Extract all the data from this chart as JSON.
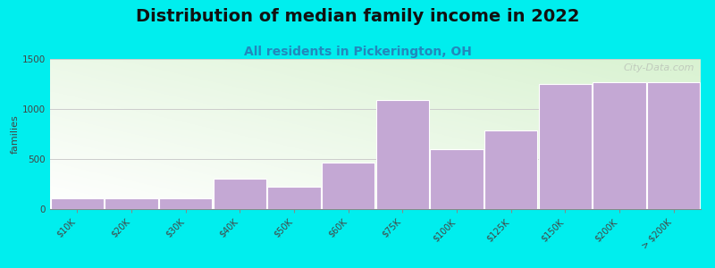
{
  "title": "Distribution of median family income in 2022",
  "subtitle": "All residents in Pickerington, OH",
  "ylabel": "families",
  "categories": [
    "$10K",
    "$20K",
    "$30K",
    "$40K",
    "$50K",
    "$60K",
    "$75K",
    "$100K",
    "$125K",
    "$150K",
    "$200K",
    "> $200K"
  ],
  "values": [
    110,
    110,
    110,
    300,
    220,
    460,
    1090,
    600,
    790,
    1250,
    1270,
    1270
  ],
  "bar_color": "#C4A8D4",
  "bar_edge_color": "#ffffff",
  "background_color": "#00EEEE",
  "ylim": [
    0,
    1500
  ],
  "yticks": [
    0,
    500,
    1000,
    1500
  ],
  "title_fontsize": 14,
  "subtitle_fontsize": 10,
  "subtitle_color": "#2288BB",
  "ylabel_fontsize": 8,
  "watermark": "City-Data.com",
  "grid_color": "#cccccc",
  "tick_label_fontsize": 7
}
